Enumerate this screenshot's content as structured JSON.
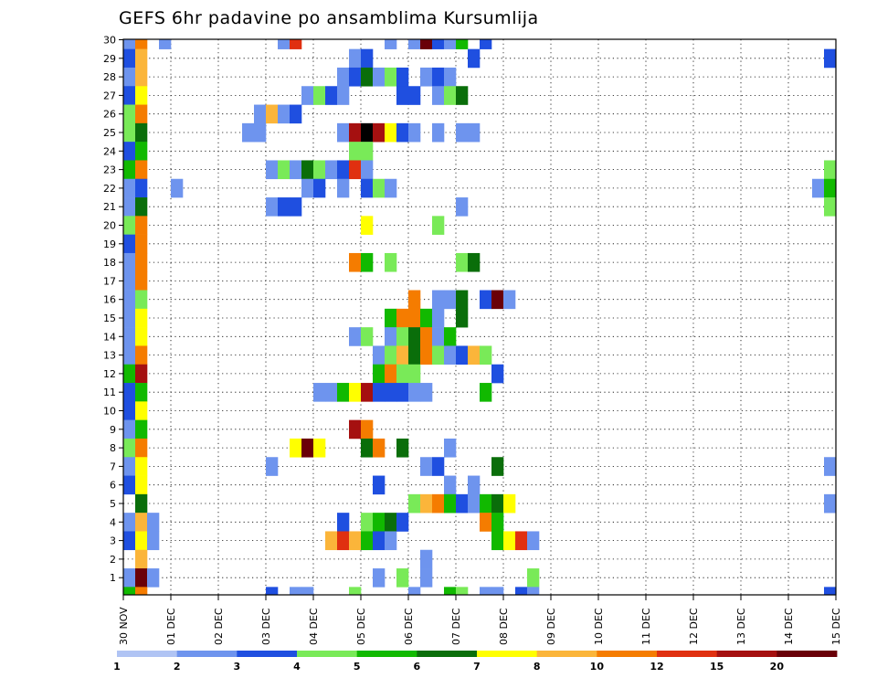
{
  "chart_data": {
    "type": "heatmap",
    "title": "GEFS 6hr padavine po ansamblima Kursumlija",
    "xlabel": "",
    "ylabel": "",
    "x_ticks": [
      "30 NOV",
      "01 DEC",
      "02 DEC",
      "03 DEC",
      "04 DEC",
      "05 DEC",
      "06 DEC",
      "07 DEC",
      "08 DEC",
      "09 DEC",
      "10 DEC",
      "11 DEC",
      "12 DEC",
      "13 DEC",
      "14 DEC",
      "15 DEC"
    ],
    "y_ticks": [
      "1",
      "2",
      "3",
      "4",
      "5",
      "6",
      "7",
      "8",
      "9",
      "10",
      "11",
      "12",
      "13",
      "14",
      "15",
      "16",
      "17",
      "18",
      "19",
      "20",
      "21",
      "22",
      "23",
      "24",
      "25",
      "26",
      "27",
      "28",
      "29",
      "30"
    ],
    "time_steps": 60,
    "members": 30,
    "grid": true,
    "colorbar": {
      "position": "bottom",
      "labels": [
        "1",
        "2",
        "3",
        "4",
        "5",
        "6",
        "7",
        "8",
        "10",
        "12",
        "15",
        "20"
      ],
      "colors": [
        "#b0c4f4",
        "#6e94ee",
        "#1f4fe0",
        "#79ea58",
        "#11b900",
        "#0a6e0a",
        "#ffff00",
        "#fbb53a",
        "#f57c00",
        "#e03010",
        "#a51010",
        "#6a0008"
      ]
    },
    "cells": [
      [
        30,
        0,
        1
      ],
      [
        30,
        1,
        8
      ],
      [
        30,
        3,
        1
      ],
      [
        30,
        13,
        1
      ],
      [
        30,
        14,
        9
      ],
      [
        30,
        22,
        1
      ],
      [
        30,
        24,
        1
      ],
      [
        30,
        25,
        11
      ],
      [
        30,
        26,
        2
      ],
      [
        30,
        27,
        1
      ],
      [
        30,
        28,
        4
      ],
      [
        30,
        30,
        2
      ],
      [
        29,
        0,
        2
      ],
      [
        29,
        1,
        7
      ],
      [
        29,
        19,
        1
      ],
      [
        29,
        20,
        2
      ],
      [
        29,
        29,
        2
      ],
      [
        29,
        59,
        2
      ],
      [
        28,
        0,
        1
      ],
      [
        28,
        1,
        7
      ],
      [
        28,
        18,
        1
      ],
      [
        28,
        19,
        2
      ],
      [
        28,
        20,
        5
      ],
      [
        28,
        21,
        1
      ],
      [
        28,
        22,
        3
      ],
      [
        28,
        23,
        2
      ],
      [
        28,
        25,
        1
      ],
      [
        28,
        26,
        2
      ],
      [
        28,
        27,
        1
      ],
      [
        27,
        0,
        2
      ],
      [
        27,
        1,
        6
      ],
      [
        27,
        15,
        1
      ],
      [
        27,
        16,
        3
      ],
      [
        27,
        17,
        2
      ],
      [
        27,
        18,
        1
      ],
      [
        27,
        23,
        2
      ],
      [
        27,
        24,
        2
      ],
      [
        27,
        26,
        1
      ],
      [
        27,
        27,
        3
      ],
      [
        27,
        28,
        5
      ],
      [
        26,
        0,
        3
      ],
      [
        26,
        1,
        8
      ],
      [
        26,
        11,
        1
      ],
      [
        26,
        12,
        7
      ],
      [
        26,
        13,
        1
      ],
      [
        26,
        14,
        2
      ],
      [
        25,
        0,
        3
      ],
      [
        25,
        1,
        5
      ],
      [
        25,
        10,
        1
      ],
      [
        25,
        11,
        1
      ],
      [
        25,
        18,
        1
      ],
      [
        25,
        19,
        10
      ],
      [
        25,
        20,
        12
      ],
      [
        25,
        21,
        10
      ],
      [
        25,
        22,
        6
      ],
      [
        25,
        23,
        2
      ],
      [
        25,
        24,
        1
      ],
      [
        25,
        26,
        1
      ],
      [
        25,
        28,
        1
      ],
      [
        25,
        29,
        1
      ],
      [
        24,
        0,
        2
      ],
      [
        24,
        1,
        4
      ],
      [
        24,
        19,
        3
      ],
      [
        24,
        20,
        3
      ],
      [
        23,
        0,
        4
      ],
      [
        23,
        1,
        8
      ],
      [
        23,
        12,
        1
      ],
      [
        23,
        13,
        3
      ],
      [
        23,
        14,
        1
      ],
      [
        23,
        15,
        5
      ],
      [
        23,
        16,
        3
      ],
      [
        23,
        17,
        1
      ],
      [
        23,
        18,
        2
      ],
      [
        23,
        19,
        9
      ],
      [
        23,
        20,
        1
      ],
      [
        23,
        59,
        3
      ],
      [
        22,
        0,
        1
      ],
      [
        22,
        1,
        2
      ],
      [
        22,
        4,
        1
      ],
      [
        22,
        15,
        1
      ],
      [
        22,
        16,
        2
      ],
      [
        22,
        18,
        1
      ],
      [
        22,
        20,
        2
      ],
      [
        22,
        21,
        3
      ],
      [
        22,
        22,
        1
      ],
      [
        22,
        58,
        1
      ],
      [
        22,
        59,
        4
      ],
      [
        21,
        0,
        1
      ],
      [
        21,
        1,
        5
      ],
      [
        21,
        12,
        1
      ],
      [
        21,
        13,
        2
      ],
      [
        21,
        14,
        2
      ],
      [
        21,
        28,
        1
      ],
      [
        21,
        59,
        3
      ],
      [
        20,
        0,
        3
      ],
      [
        20,
        1,
        8
      ],
      [
        20,
        20,
        6
      ],
      [
        20,
        26,
        3
      ],
      [
        19,
        0,
        2
      ],
      [
        19,
        1,
        8
      ],
      [
        18,
        0,
        1
      ],
      [
        18,
        1,
        8
      ],
      [
        18,
        19,
        8
      ],
      [
        18,
        20,
        4
      ],
      [
        18,
        22,
        3
      ],
      [
        18,
        28,
        3
      ],
      [
        18,
        29,
        5
      ],
      [
        17,
        0,
        1
      ],
      [
        17,
        1,
        8
      ],
      [
        16,
        0,
        1
      ],
      [
        16,
        1,
        3
      ],
      [
        16,
        24,
        8
      ],
      [
        16,
        26,
        1
      ],
      [
        16,
        27,
        1
      ],
      [
        16,
        28,
        5
      ],
      [
        16,
        30,
        2
      ],
      [
        16,
        31,
        11
      ],
      [
        16,
        32,
        1
      ],
      [
        15,
        0,
        1
      ],
      [
        15,
        1,
        6
      ],
      [
        15,
        22,
        4
      ],
      [
        15,
        23,
        8
      ],
      [
        15,
        24,
        8
      ],
      [
        15,
        25,
        4
      ],
      [
        15,
        26,
        1
      ],
      [
        15,
        28,
        5
      ],
      [
        14,
        0,
        1
      ],
      [
        14,
        1,
        6
      ],
      [
        14,
        19,
        1
      ],
      [
        14,
        20,
        3
      ],
      [
        14,
        22,
        1
      ],
      [
        14,
        23,
        3
      ],
      [
        14,
        24,
        5
      ],
      [
        14,
        25,
        8
      ],
      [
        14,
        26,
        1
      ],
      [
        14,
        27,
        4
      ],
      [
        13,
        0,
        1
      ],
      [
        13,
        1,
        8
      ],
      [
        13,
        21,
        1
      ],
      [
        13,
        22,
        3
      ],
      [
        13,
        23,
        7
      ],
      [
        13,
        24,
        5
      ],
      [
        13,
        25,
        8
      ],
      [
        13,
        26,
        3
      ],
      [
        13,
        27,
        1
      ],
      [
        13,
        28,
        2
      ],
      [
        13,
        29,
        7
      ],
      [
        13,
        30,
        3
      ],
      [
        12,
        0,
        4
      ],
      [
        12,
        1,
        10
      ],
      [
        12,
        21,
        4
      ],
      [
        12,
        22,
        8
      ],
      [
        12,
        23,
        3
      ],
      [
        12,
        24,
        3
      ],
      [
        12,
        31,
        2
      ],
      [
        11,
        0,
        2
      ],
      [
        11,
        1,
        4
      ],
      [
        11,
        16,
        1
      ],
      [
        11,
        17,
        1
      ],
      [
        11,
        18,
        4
      ],
      [
        11,
        19,
        6
      ],
      [
        11,
        20,
        10
      ],
      [
        11,
        21,
        2
      ],
      [
        11,
        22,
        2
      ],
      [
        11,
        23,
        2
      ],
      [
        11,
        24,
        1
      ],
      [
        11,
        25,
        1
      ],
      [
        11,
        30,
        4
      ],
      [
        10,
        0,
        2
      ],
      [
        10,
        1,
        6
      ],
      [
        9,
        0,
        1
      ],
      [
        9,
        1,
        4
      ],
      [
        9,
        19,
        10
      ],
      [
        9,
        20,
        8
      ],
      [
        8,
        0,
        3
      ],
      [
        8,
        1,
        8
      ],
      [
        8,
        14,
        6
      ],
      [
        8,
        15,
        11
      ],
      [
        8,
        16,
        6
      ],
      [
        8,
        20,
        5
      ],
      [
        8,
        21,
        8
      ],
      [
        8,
        23,
        5
      ],
      [
        8,
        27,
        1
      ],
      [
        7,
        0,
        1
      ],
      [
        7,
        1,
        6
      ],
      [
        7,
        12,
        1
      ],
      [
        7,
        25,
        1
      ],
      [
        7,
        26,
        2
      ],
      [
        7,
        31,
        5
      ],
      [
        7,
        59,
        1
      ],
      [
        6,
        0,
        2
      ],
      [
        6,
        1,
        6
      ],
      [
        6,
        21,
        2
      ],
      [
        6,
        27,
        1
      ],
      [
        6,
        29,
        1
      ],
      [
        5,
        1,
        5
      ],
      [
        5,
        24,
        3
      ],
      [
        5,
        25,
        7
      ],
      [
        5,
        26,
        8
      ],
      [
        5,
        27,
        4
      ],
      [
        5,
        28,
        2
      ],
      [
        5,
        29,
        1
      ],
      [
        5,
        30,
        4
      ],
      [
        5,
        31,
        5
      ],
      [
        5,
        32,
        6
      ],
      [
        5,
        59,
        1
      ],
      [
        4,
        0,
        1
      ],
      [
        4,
        1,
        7
      ],
      [
        4,
        2,
        1
      ],
      [
        4,
        18,
        2
      ],
      [
        4,
        20,
        3
      ],
      [
        4,
        21,
        4
      ],
      [
        4,
        22,
        5
      ],
      [
        4,
        23,
        2
      ],
      [
        4,
        30,
        8
      ],
      [
        4,
        31,
        4
      ],
      [
        3,
        0,
        2
      ],
      [
        3,
        1,
        6
      ],
      [
        3,
        2,
        1
      ],
      [
        3,
        17,
        7
      ],
      [
        3,
        18,
        9
      ],
      [
        3,
        19,
        7
      ],
      [
        3,
        20,
        4
      ],
      [
        3,
        21,
        2
      ],
      [
        3,
        22,
        1
      ],
      [
        3,
        31,
        4
      ],
      [
        3,
        32,
        6
      ],
      [
        3,
        33,
        9
      ],
      [
        3,
        34,
        1
      ],
      [
        2,
        1,
        7
      ],
      [
        2,
        25,
        1
      ],
      [
        1,
        0,
        1
      ],
      [
        1,
        1,
        11
      ],
      [
        1,
        2,
        1
      ],
      [
        1,
        21,
        1
      ],
      [
        1,
        23,
        3
      ],
      [
        1,
        25,
        1
      ],
      [
        1,
        34,
        3
      ],
      [
        0,
        0,
        4
      ],
      [
        0,
        1,
        8
      ],
      [
        0,
        12,
        2
      ],
      [
        0,
        14,
        1
      ],
      [
        0,
        15,
        1
      ],
      [
        0,
        19,
        3
      ],
      [
        0,
        24,
        1
      ],
      [
        0,
        27,
        4
      ],
      [
        0,
        28,
        3
      ],
      [
        0,
        30,
        1
      ],
      [
        0,
        31,
        1
      ],
      [
        0,
        33,
        2
      ],
      [
        0,
        34,
        1
      ],
      [
        0,
        59,
        2
      ]
    ]
  }
}
